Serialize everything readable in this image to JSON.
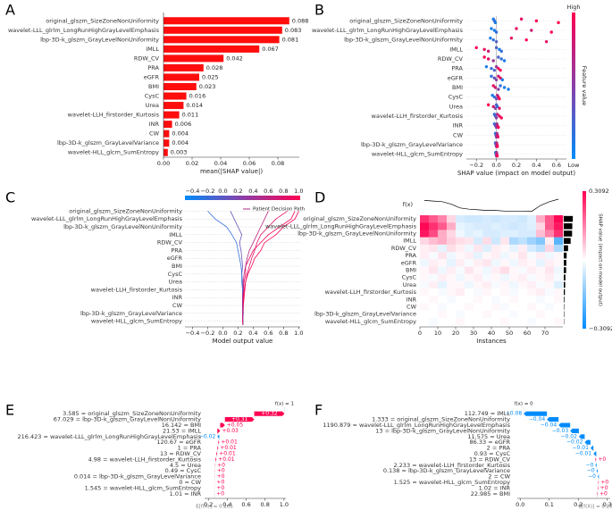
{
  "chart_data": [
    {
      "panel": "A",
      "type": "bar",
      "color": "#ff0d0d",
      "xlabel": "mean(|SHAP value|)",
      "categories": [
        "original_glszm_SizeZoneNonUniformity",
        "wavelet-LLL_glrlm_LongRunHighGrayLevelEmphasis",
        "lbp-3D-k_glszm_GrayLevelNonUniformity",
        "IMLL",
        "RDW_CV",
        "PRA",
        "eGFR",
        "BMI",
        "CysC",
        "Urea",
        "wavelet-LLH_firstorder_Kurtosis",
        "INR",
        "CW",
        "lbp-3D-k_glszm_GrayLevelVariance",
        "wavelet-HLL_glcm_SumEntropy"
      ],
      "values": [
        0.088,
        0.083,
        0.081,
        0.067,
        0.042,
        0.028,
        0.025,
        0.023,
        0.016,
        0.014,
        0.011,
        0.006,
        0.004,
        0.004,
        0.003
      ],
      "xlim": [
        0,
        0.095
      ],
      "xticks": [
        {
          "value": 0,
          "label": "0.00"
        },
        0.02,
        0.04,
        0.06,
        0.08
      ]
    },
    {
      "panel": "B",
      "type": "beeswarm",
      "xlabel": "SHAP value (impact on model output)",
      "colorbar_label": "Feature value",
      "colorbar_high": "High",
      "colorbar_low": "Low",
      "low_color": "#008bfb",
      "high_color": "#ff0051",
      "categories": [
        "original_glszm_SizeZoneNonUniformity",
        "wavelet-LLL_glrlm_LongRunHighGrayLevelEmphasis",
        "lbp-3D-k_glszm_GrayLevelNonUniformity",
        "IMLL",
        "RDW_CV",
        "PRA",
        "eGFR",
        "BMI",
        "CysC",
        "Urea",
        "wavelet-LLH_firstorder_Kurtosis",
        "INR",
        "CW",
        "lbp-3D-k_glszm_GrayLevelVariance",
        "wavelet-HLL_glcm_SumEntropy"
      ],
      "points": [
        [
          -0.03,
          -0.02,
          -0.01,
          0.25,
          0.4,
          0.62
        ],
        [
          -0.05,
          -0.02,
          0.0,
          0.2,
          0.35,
          0.55
        ],
        [
          -0.06,
          -0.03,
          0.0,
          0.15,
          0.3,
          0.5
        ],
        [
          -0.2,
          -0.12,
          -0.08,
          0.0,
          0.03,
          0.05
        ],
        [
          -0.12,
          -0.08,
          -0.03,
          0.02,
          0.05,
          0.08
        ],
        [
          -0.1,
          -0.05,
          -0.02,
          0.0,
          0.02,
          0.04
        ],
        [
          -0.05,
          -0.02,
          0,
          0.02,
          0.04,
          0.06
        ],
        [
          -0.03,
          -0.01,
          0.02,
          0.04,
          0.08,
          0.12
        ],
        [
          -0.04,
          -0.02,
          0,
          0.01,
          0.02,
          0.03
        ],
        [
          -0.08,
          -0.03,
          -0.01,
          0,
          0.01,
          0.03
        ],
        [
          -0.02,
          -0.01,
          0,
          0.01,
          0.03,
          0.05
        ],
        [
          -0.02,
          -0.01,
          0,
          0.005,
          0.01,
          0.02
        ],
        [
          -0.01,
          -0.005,
          0,
          0.005,
          0.01,
          0.015
        ],
        [
          -0.01,
          -0.005,
          0,
          0.003,
          0.006,
          0.01
        ],
        [
          -0.008,
          -0.004,
          0,
          0.002,
          0.004,
          0.008
        ]
      ],
      "feature_values": [
        [
          0.1,
          0.2,
          0.1,
          0.9,
          1,
          1
        ],
        [
          0.1,
          0.1,
          0.2,
          0.9,
          0.8,
          1
        ],
        [
          0.1,
          0.2,
          0.3,
          0.9,
          1,
          0.9
        ],
        [
          1,
          0.9,
          0.8,
          0.3,
          0.1,
          0.2
        ],
        [
          1,
          0.9,
          0.6,
          0.3,
          0.2,
          0.1
        ],
        [
          0.1,
          0.2,
          0.3,
          0.6,
          0.9,
          1
        ],
        [
          0.2,
          0.4,
          0.5,
          0.8,
          0.9,
          0.1
        ],
        [
          0.9,
          0.8,
          0.5,
          0.2,
          0.1,
          0.1
        ],
        [
          0.1,
          0.2,
          0.4,
          0.7,
          0.9,
          1
        ],
        [
          1,
          0.8,
          0.5,
          0.3,
          0.2,
          0.9
        ],
        [
          0.2,
          0.3,
          0.5,
          0.7,
          0.9,
          1
        ],
        [
          0.2,
          0.4,
          0.5,
          0.6,
          0.8,
          1
        ],
        [
          0.1,
          0.3,
          0.5,
          0.6,
          0.8,
          0.9
        ],
        [
          0.2,
          0.3,
          0.5,
          0.7,
          0.8,
          1
        ],
        [
          0.1,
          0.3,
          0.4,
          0.6,
          0.8,
          1
        ]
      ],
      "xlim": [
        -0.3,
        0.7
      ],
      "xticks": [
        {
          "value": -0.2,
          "label": "−0.2"
        },
        {
          "value": 0,
          "label": "0.0"
        },
        0.2,
        0.4,
        0.6
      ]
    },
    {
      "panel": "C",
      "type": "decision",
      "xlabel": "Model output value",
      "legend": "Patient Decision Path",
      "categories": [
        "original_glszm_SizeZoneNonUniformity",
        "wavelet-LLL_glrlm_LongRunHighGrayLevelEmphasis",
        "lbp-3D-k_glszm_GrayLevelNonUniformity",
        "IMLL",
        "RDW_CV",
        "PRA",
        "eGFR",
        "BMI",
        "CysC",
        "Urea",
        "wavelet-LLH_firstorder_Kurtosis",
        "INR",
        "CW",
        "lbp-3D-k_glszm_GrayLevelVariance",
        "wavelet-HLL_glcm_SumEntropy"
      ],
      "paths": [
        [
          1.0,
          0.95,
          0.8,
          0.7,
          0.55,
          0.5,
          0.42,
          0.38,
          0.33,
          0.3,
          0.29,
          0.28,
          0.27,
          0.27,
          0.26,
          0.265
        ],
        [
          0.85,
          0.7,
          0.6,
          0.5,
          0.45,
          0.42,
          0.38,
          0.35,
          0.32,
          0.3,
          0.28,
          0.27,
          0.27,
          0.26,
          0.26,
          0.265
        ],
        [
          0.95,
          0.9,
          0.75,
          0.6,
          0.5,
          0.4,
          0.35,
          0.3,
          0.3,
          0.28,
          0.27,
          0.27,
          0.26,
          0.26,
          0.26,
          0.265
        ],
        [
          0.1,
          0.15,
          0.2,
          0.25,
          0.22,
          0.24,
          0.25,
          0.26,
          0.25,
          0.26,
          0.26,
          0.26,
          0.26,
          0.265,
          0.265,
          0.265
        ],
        [
          -0.2,
          -0.1,
          0.05,
          0.12,
          0.18,
          0.2,
          0.22,
          0.24,
          0.25,
          0.25,
          0.26,
          0.26,
          0.26,
          0.265,
          0.265,
          0.265
        ],
        [
          0.6,
          0.55,
          0.5,
          0.45,
          0.4,
          0.35,
          0.32,
          0.3,
          0.28,
          0.27,
          0.27,
          0.26,
          0.26,
          0.26,
          0.265,
          0.265
        ]
      ],
      "xlim": [
        -0.5,
        1.02
      ],
      "xticks": [
        {
          "value": -0.4,
          "label": "−0.4"
        },
        {
          "value": -0.2,
          "label": "−0.2"
        },
        {
          "value": 0,
          "label": "0.0"
        },
        0.2,
        0.4,
        0.6,
        0.8,
        {
          "value": 1,
          "label": "1.0"
        }
      ]
    },
    {
      "panel": "D",
      "type": "heatmap",
      "xlabel": "Instances",
      "fx_label": "f(x)",
      "colorbar_label": "SHAP value (impact on model output)",
      "categories": [
        "original_glszm_SizeZoneNonUniformity",
        "wavelet-LLL_glrlm_LongRunHighGrayLevelEmphasis",
        "lbp-3D-k_glszm_GrayLevelNonUniformity",
        "IMLL",
        "RDW_CV",
        "PRA",
        "eGFR",
        "BMI",
        "CysC",
        "Urea",
        "wavelet-LLH_firstorder_Kurtosis",
        "INR",
        "CW",
        "lbp-3D-k_glszm_GrayLevelVariance",
        "wavelet-HLL_glcm_SumEntropy"
      ],
      "instances": [
        0,
        5,
        10,
        15,
        20,
        25,
        30,
        35,
        40,
        45,
        50,
        55,
        60,
        65,
        70,
        75
      ],
      "fx": [
        0.9,
        0.85,
        0.8,
        0.6,
        0.3,
        0.2,
        0.15,
        0.1,
        0.1,
        0.05,
        0.05,
        0.05,
        0.02,
        0.5,
        0.8,
        1.0
      ],
      "matrix": [
        [
          0.25,
          0.2,
          0.15,
          0.05,
          -0.05,
          -0.06,
          -0.06,
          -0.05,
          -0.06,
          -0.05,
          -0.05,
          -0.06,
          -0.04,
          0.1,
          0.2,
          0.3
        ],
        [
          0.3,
          0.25,
          0.2,
          0.1,
          -0.03,
          -0.04,
          -0.05,
          -0.05,
          -0.04,
          -0.05,
          -0.06,
          -0.05,
          -0.04,
          0.05,
          0.2,
          0.28
        ],
        [
          0.28,
          0.22,
          0.1,
          0.05,
          -0.02,
          -0.04,
          -0.03,
          -0.05,
          -0.05,
          -0.04,
          -0.04,
          -0.05,
          -0.05,
          0.08,
          0.15,
          0.25
        ],
        [
          0.05,
          0.08,
          0.1,
          0.06,
          0.04,
          0.03,
          -0.05,
          0.04,
          -0.06,
          0.03,
          -0.1,
          -0.08,
          -0.12,
          -0.15,
          0.02,
          -0.2
        ],
        [
          0.02,
          0.03,
          -0.03,
          0.04,
          0.02,
          -0.02,
          0.03,
          -0.04,
          0.02,
          0.01,
          -0.03,
          0.02,
          -0.05,
          -0.08,
          0.05,
          -0.1
        ],
        [
          0.02,
          -0.01,
          0.03,
          -0.02,
          0.01,
          0.02,
          -0.03,
          0.01,
          0.02,
          -0.02,
          0.01,
          0.03,
          -0.01,
          0.02,
          -0.02,
          0.01
        ],
        [
          -0.02,
          0.02,
          0.01,
          -0.03,
          0.02,
          -0.01,
          0.02,
          0.03,
          -0.02,
          0.01,
          -0.02,
          0.02,
          0.01,
          -0.03,
          0.02,
          0.01
        ],
        [
          0.01,
          0.03,
          -0.02,
          0.02,
          -0.01,
          0.03,
          0.01,
          -0.02,
          0.02,
          0.04,
          0.01,
          -0.01,
          0.02,
          0.01,
          0.03,
          -0.02
        ],
        [
          0.01,
          -0.01,
          0.02,
          0.01,
          -0.02,
          0.01,
          0.02,
          -0.01,
          0.01,
          -0.02,
          0.01,
          0.02,
          -0.01,
          0.01,
          0.02,
          -0.01
        ],
        [
          -0.01,
          0.02,
          -0.03,
          0.01,
          0.01,
          -0.02,
          0.01,
          0.02,
          -0.01,
          0.01,
          -0.02,
          0.01,
          0.02,
          -0.01,
          0.01,
          -0.04
        ],
        [
          0.01,
          0.0,
          -0.01,
          0.01,
          0.02,
          0.0,
          -0.01,
          0.01,
          0.0,
          0.01,
          -0.01,
          0.0,
          0.01,
          0.02,
          -0.01,
          0.01
        ],
        [
          0.0,
          0.01,
          0.0,
          -0.01,
          0.0,
          0.0,
          0.01,
          0.0,
          -0.01,
          0.0,
          0.01,
          0.0,
          0.0,
          -0.01,
          0.0,
          0.01
        ],
        [
          0.01,
          0.0,
          -0.01,
          0.0,
          0.0,
          0.01,
          0.0,
          0.0,
          0.01,
          -0.01,
          0.0,
          0.0,
          0.01,
          0.0,
          -0.01,
          0.0
        ],
        [
          0.0,
          0.0,
          0.01,
          0.0,
          -0.01,
          0.0,
          0.0,
          0.01,
          0.0,
          0.0,
          -0.01,
          0.0,
          0.0,
          0.01,
          0.0,
          0.0
        ],
        [
          0.0,
          -0.01,
          0.0,
          0.0,
          0.01,
          0.0,
          0.0,
          0.0,
          0.0,
          0.01,
          0.0,
          0.0,
          -0.01,
          0.0,
          0.0,
          0.01
        ]
      ],
      "xlim": [
        0,
        80
      ],
      "xticks": [
        0,
        10,
        20,
        30,
        40,
        50,
        60,
        70
      ],
      "cticks": [
        {
          "value": 0.3092,
          "label": "0.3092"
        },
        {
          "value": -0.3092,
          "label": "−0.3092"
        }
      ]
    },
    {
      "panel": "E",
      "type": "waterfall",
      "fx_label": "f(x) = 1",
      "base_label": "E[f(X)] = 0.265",
      "base_value": 0.265,
      "pos_color": "#ff0051",
      "neg_color": "#008bfb",
      "categories": [
        "3.585 = original_glszm_SizeZoneNonUniformity",
        "67.029 = lbp-3D-k_glszm_GrayLevelNonUniformity",
        "16.142 = BMI",
        "21.53 = IMLL",
        "216.423 = wavelet-LLL_glrlm_LongRunHighGrayLevelEmphasis",
        "120.67 = eGFR",
        "1 = PRA",
        "13 = RDW_CV",
        "4.98 = wavelet-LLH_firstorder_Kurtosis",
        "4.5 = Urea",
        "0.49 = CysC",
        "0.014 = lbp-3D-k_glszm_GrayLevelVariance",
        "0 = CW",
        "1.545 = wavelet-HLL_glcm_SumEntropy",
        "1.01 = INR"
      ],
      "values": [
        0.32,
        0.31,
        0.05,
        0.03,
        -0.02,
        0.01,
        0.01,
        0.01,
        0.01,
        0.003,
        0.002,
        0.002,
        0.001,
        0.001,
        0.001
      ],
      "value_labels": [
        "+0.32",
        "+0.31",
        "+0.05",
        "+0.03",
        "−0.02",
        "+0.01",
        "+0.01",
        "+0.01",
        "+0.01",
        "+0",
        "+0",
        "+0",
        "+0",
        "+0",
        "+0"
      ],
      "xlim": [
        0.16,
        1.02
      ],
      "xticks": [
        0.2,
        0.4,
        0.6,
        0.8,
        {
          "value": 1,
          "label": "1.0"
        }
      ]
    },
    {
      "panel": "F",
      "type": "waterfall",
      "fx_label": "f(x) = 0",
      "base_label": "E[f(X)] = 0.265",
      "base_value": 0.265,
      "pos_color": "#ff0051",
      "neg_color": "#008bfb",
      "categories": [
        "112.749 = IMLL",
        "1.333 = original_glszm_SizeZoneNonUniformity",
        "1190.879 = wavelet-LLL_glrlm_LongRunHighGrayLevelEmphasis",
        "13 = lbp-3D-k_glszm_GrayLevelNonUniformity",
        "11.575 = Urea",
        "86.33 = eGFR",
        "2 = PRA",
        "0.93 = CysC",
        "13 = RDW_CV",
        "2.233 = wavelet-LLH_firstorder_Kurtosis",
        "0.138 = lbp-3D-k_glszm_GrayLevelVariance",
        "2 = CW",
        "1.525 = wavelet-HLL_glcm_SumEntropy",
        "1.02 = INR",
        "22.985 = BMI"
      ],
      "values": [
        -0.08,
        -0.04,
        -0.04,
        -0.03,
        -0.02,
        -0.02,
        -0.01,
        -0.01,
        0.003,
        -0.004,
        -0.004,
        -0.004,
        0.002,
        0.002,
        0.002
      ],
      "value_labels": [
        "−0.08",
        "−0.04",
        "−0.04",
        "−0.03",
        "−0.02",
        "−0.02",
        "−0.01",
        "−0.01",
        "+0",
        "−0",
        "−0",
        "−0",
        "+0",
        "+0",
        "+0"
      ],
      "xlim": [
        -0.01,
        0.31
      ],
      "xticks": [
        {
          "value": 0,
          "label": "0.0"
        },
        0.1,
        0.2,
        0.3
      ]
    }
  ]
}
